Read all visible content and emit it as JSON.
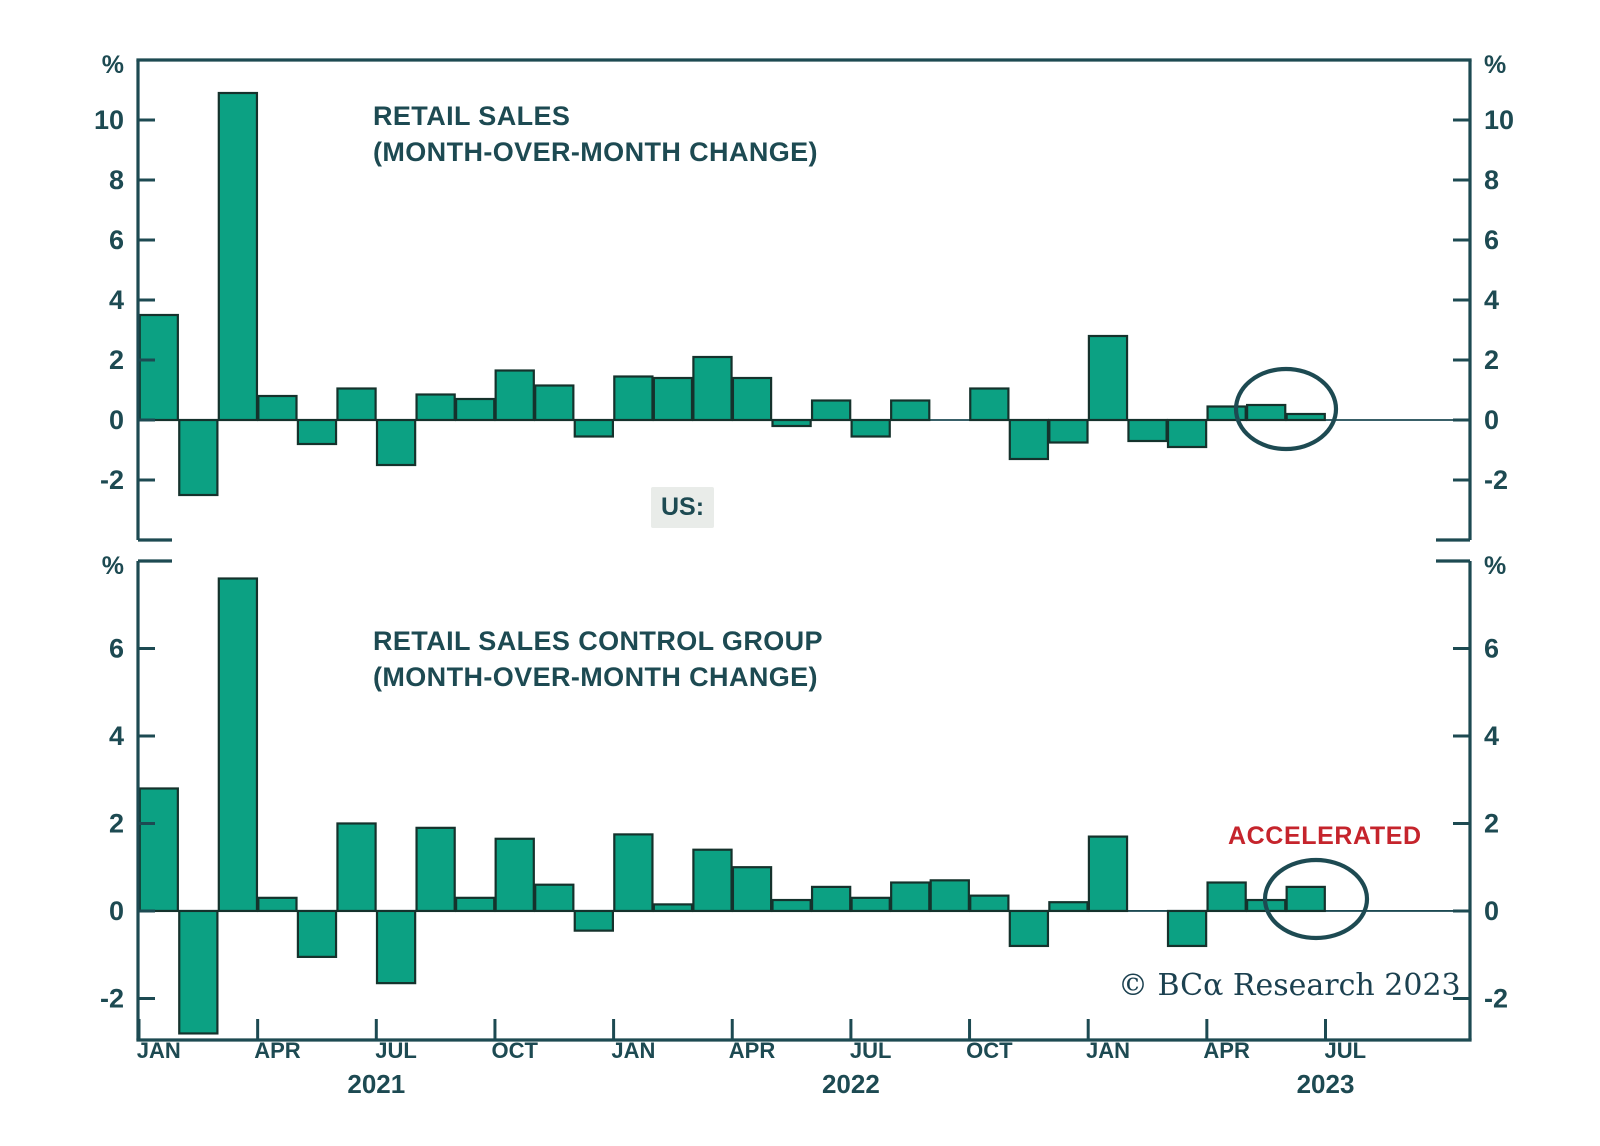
{
  "page": {
    "background": "#ffffff"
  },
  "colors": {
    "bar_fill": "#0ca183",
    "bar_stroke": "#15322c",
    "axis": "#1d4a52",
    "text": "#1d4a52",
    "accent_red": "#c5242c",
    "badge_bg": "#e9ece9"
  },
  "us_label": "US:",
  "annotations": {
    "accelerated": "ACCELERATED",
    "copyright": "© BCα Research 2023"
  },
  "x_axis": {
    "tick_labels": [
      "JAN",
      "APR",
      "JUL",
      "OCT",
      "JAN",
      "APR",
      "JUL",
      "OCT",
      "JAN",
      "APR",
      "JUL"
    ],
    "year_labels": [
      "2021",
      "2022",
      "2023"
    ]
  },
  "chart_data": [
    {
      "type": "bar",
      "title": "RETAIL SALES",
      "subtitle": "(MONTH-OVER-MONTH CHANGE)",
      "unit": "%",
      "x": [
        "Jan-21",
        "Feb-21",
        "Mar-21",
        "Apr-21",
        "May-21",
        "Jun-21",
        "Jul-21",
        "Aug-21",
        "Sep-21",
        "Oct-21",
        "Nov-21",
        "Dec-21",
        "Jan-22",
        "Feb-22",
        "Mar-22",
        "Apr-22",
        "May-22",
        "Jun-22",
        "Jul-22",
        "Aug-22",
        "Sep-22",
        "Oct-22",
        "Nov-22",
        "Dec-22",
        "Jan-23",
        "Feb-23",
        "Mar-23",
        "Apr-23",
        "May-23",
        "Jun-23"
      ],
      "values": [
        3.5,
        -2.5,
        10.9,
        0.8,
        -0.8,
        1.05,
        -1.5,
        0.85,
        0.7,
        1.65,
        1.15,
        -0.55,
        1.45,
        1.4,
        2.1,
        1.4,
        -0.2,
        0.65,
        -0.55,
        0.65,
        0.0,
        1.05,
        -1.3,
        -0.75,
        2.8,
        -0.7,
        -0.9,
        0.45,
        0.5,
        0.2
      ],
      "ylim": [
        -4.0,
        12.0
      ],
      "yticks": [
        -2,
        0,
        2,
        4,
        6,
        8,
        10
      ],
      "grid": false,
      "highlight": "last two months circled"
    },
    {
      "type": "bar",
      "title": "RETAIL SALES CONTROL GROUP",
      "subtitle": "(MONTH-OVER-MONTH CHANGE)",
      "unit": "%",
      "x": [
        "Jan-21",
        "Feb-21",
        "Mar-21",
        "Apr-21",
        "May-21",
        "Jun-21",
        "Jul-21",
        "Aug-21",
        "Sep-21",
        "Oct-21",
        "Nov-21",
        "Dec-21",
        "Jan-22",
        "Feb-22",
        "Mar-22",
        "Apr-22",
        "May-22",
        "Jun-22",
        "Jul-22",
        "Aug-22",
        "Sep-22",
        "Oct-22",
        "Nov-22",
        "Dec-22",
        "Jan-23",
        "Feb-23",
        "Mar-23",
        "Apr-23",
        "May-23",
        "Jun-23"
      ],
      "values": [
        2.8,
        -2.8,
        7.6,
        0.3,
        -1.05,
        2.0,
        -1.65,
        1.9,
        0.3,
        1.65,
        0.6,
        -0.45,
        1.75,
        0.15,
        1.4,
        1.0,
        0.25,
        0.55,
        0.3,
        0.65,
        0.7,
        0.35,
        -0.8,
        0.2,
        1.7,
        0.0,
        -0.8,
        0.65,
        0.25,
        0.55
      ],
      "ylim": [
        -2.95,
        8.0
      ],
      "yticks": [
        -2,
        0,
        2,
        4,
        6
      ],
      "grid": false,
      "highlight": "last two months circled"
    }
  ]
}
